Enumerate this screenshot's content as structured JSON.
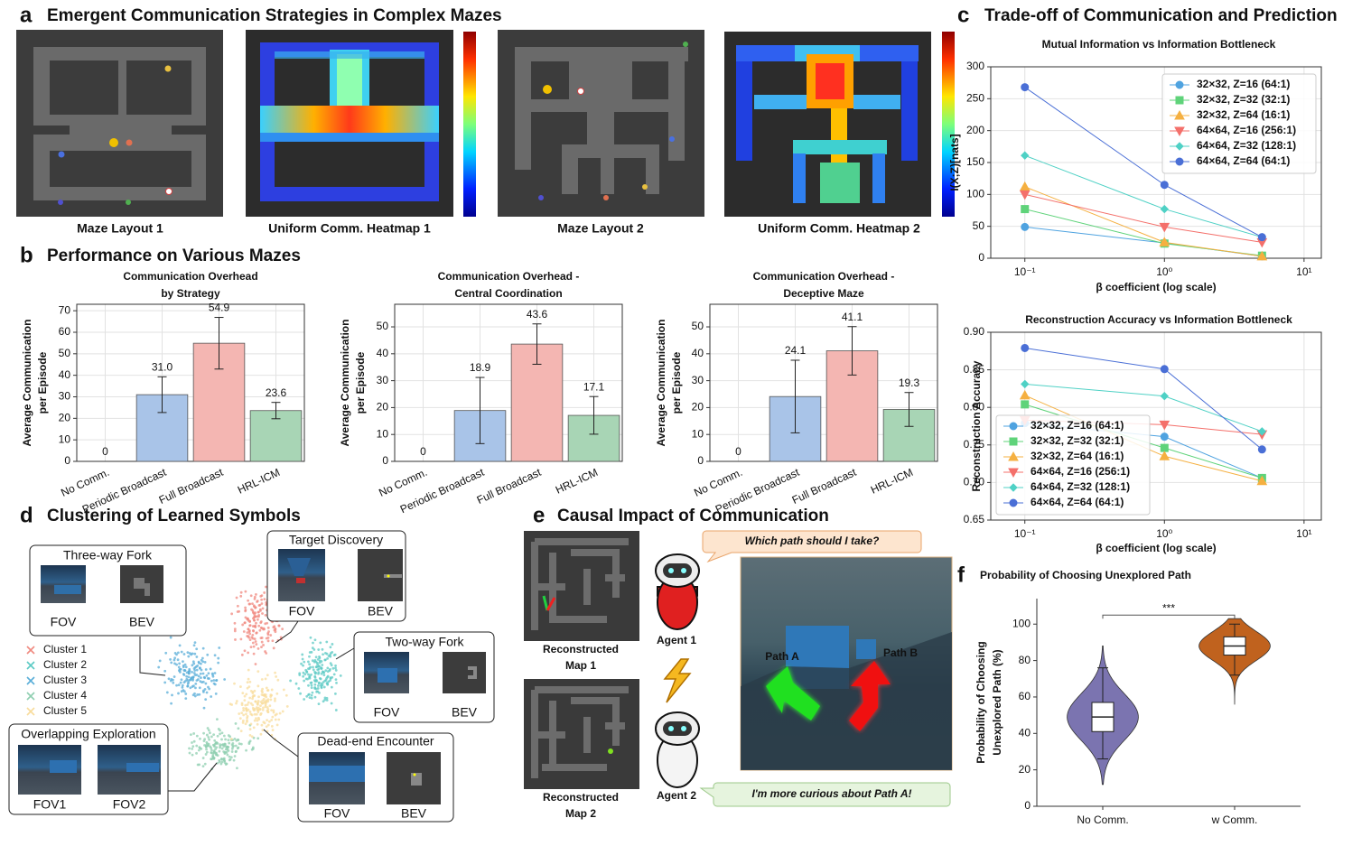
{
  "panels": {
    "a": {
      "letter": "a",
      "title": "Emergent Communication Strategies in Complex Mazes",
      "captions": [
        "Maze Layout 1",
        "Uniform Comm. Heatmap 1",
        "Maze Layout 2",
        "Uniform Comm. Heatmap 2"
      ]
    },
    "b": {
      "letter": "b",
      "title": "Performance on Various Mazes"
    },
    "c": {
      "letter": "c",
      "title": "Trade-off of Communication and Prediction"
    },
    "d": {
      "letter": "d",
      "title": "Clustering of Learned Symbols",
      "clusters": [
        {
          "name": "Cluster 1",
          "color": "#f08a80"
        },
        {
          "name": "Cluster 2",
          "color": "#5ccac4"
        },
        {
          "name": "Cluster 3",
          "color": "#5aaed8"
        },
        {
          "name": "Cluster 4",
          "color": "#8fcfb0"
        },
        {
          "name": "Cluster 5",
          "color": "#f8dc9c"
        }
      ],
      "examples": [
        {
          "title": "Three-way Fork",
          "views": [
            "FOV",
            "BEV"
          ]
        },
        {
          "title": "Target Discovery",
          "views": [
            "FOV",
            "BEV"
          ]
        },
        {
          "title": "Two-way Fork",
          "views": [
            "FOV",
            "BEV"
          ]
        },
        {
          "title": "Overlapping Exploration",
          "views": [
            "FOV1",
            "FOV2"
          ]
        },
        {
          "title": "Dead-end Encounter",
          "views": [
            "FOV",
            "BEV"
          ]
        }
      ]
    },
    "e": {
      "letter": "e",
      "title": "Causal Impact of Communication",
      "question": "Which path should I take?",
      "answer": "I'm more curious about Path A!",
      "agents": [
        "Agent 1",
        "Agent 2"
      ],
      "maps": [
        [
          "Reconstructed",
          "Map 1"
        ],
        [
          "Reconstructed",
          "Map 2"
        ]
      ],
      "paths": [
        "Path A",
        "Path B"
      ]
    },
    "f": {
      "letter": "f"
    }
  },
  "chart_data": [
    {
      "type": "bar",
      "title": [
        "Communication Overhead",
        "by Strategy"
      ],
      "ylabel": [
        "Average Communication",
        "per Episode"
      ],
      "categories": [
        "No Comm.",
        "Periodic Broadcast",
        "Full Broadcast",
        "HRL-ICM"
      ],
      "values": [
        0,
        31.0,
        54.9,
        23.6
      ],
      "value_labels": [
        "0",
        "31.0",
        "54.9",
        "23.6"
      ],
      "errors": [
        0,
        8.3,
        12,
        3.8
      ],
      "colors": [
        "#a9c4e8",
        "#a9c4e8",
        "#f4b6b2",
        "#a8d5b5"
      ],
      "ylim": [
        0,
        73
      ],
      "yticks": [
        0,
        10,
        20,
        30,
        40,
        50,
        60,
        70
      ],
      "grid": true
    },
    {
      "type": "bar",
      "title": [
        "Communication Overhead -",
        "Central Coordination"
      ],
      "ylabel": [
        "Average Communication",
        "per Episode"
      ],
      "categories": [
        "No Comm.",
        "Periodic Broadcast",
        "Full Broadcast",
        "HRL-ICM"
      ],
      "values": [
        0,
        18.9,
        43.6,
        17.1
      ],
      "value_labels": [
        "0",
        "18.9",
        "43.6",
        "17.1"
      ],
      "errors": [
        0,
        12.3,
        7.5,
        7
      ],
      "colors": [
        "#a9c4e8",
        "#a9c4e8",
        "#f4b6b2",
        "#a8d5b5"
      ],
      "ylim": [
        0,
        58.4
      ],
      "yticks": [
        0,
        10,
        20,
        30,
        40,
        50
      ],
      "grid": true
    },
    {
      "type": "bar",
      "title": [
        "Communication Overhead -",
        "Deceptive Maze"
      ],
      "ylabel": [
        "Average Communication",
        "per Episode"
      ],
      "categories": [
        "No Comm.",
        "Periodic Broadcast",
        "Full Broadcast",
        "HRL-ICM"
      ],
      "values": [
        0,
        24.1,
        41.1,
        19.3
      ],
      "value_labels": [
        "0",
        "24.1",
        "41.1",
        "19.3"
      ],
      "errors": [
        0,
        13.5,
        9,
        6.3
      ],
      "colors": [
        "#a9c4e8",
        "#a9c4e8",
        "#f4b6b2",
        "#a8d5b5"
      ],
      "ylim": [
        0,
        58.4
      ],
      "yticks": [
        0,
        10,
        20,
        30,
        40,
        50
      ],
      "grid": true
    },
    {
      "type": "line",
      "title": "Mutual Information vs Information Bottleneck",
      "xlabel": "β coefficient (log scale)",
      "ylabel": [
        "I(X;Z)[nats]"
      ],
      "x": [
        0.1,
        1,
        5
      ],
      "xscale": "log",
      "xlim": [
        0.057,
        13.3
      ],
      "xticks": [
        {
          "value": 0.1,
          "label": "10⁻¹"
        },
        {
          "value": 1,
          "label": "10⁰"
        },
        {
          "value": 10,
          "label": "10¹"
        }
      ],
      "ylim": [
        0,
        300
      ],
      "yticks": [
        0,
        50,
        100,
        150,
        200,
        250,
        300
      ],
      "grid": true,
      "legend": "upper right",
      "series": [
        {
          "name": "32×32, Z=16 (64:1)",
          "color": "#4fa3e0",
          "marker": "circle",
          "values": [
            49,
            24,
            3
          ]
        },
        {
          "name": "32×32, Z=32 (32:1)",
          "color": "#5fd37a",
          "marker": "square",
          "values": [
            77,
            23,
            4
          ]
        },
        {
          "name": "32×32, Z=64 (16:1)",
          "color": "#f5b041",
          "marker": "triangle-up",
          "values": [
            112,
            25,
            3
          ]
        },
        {
          "name": "64×64, Z=16 (256:1)",
          "color": "#f4706b",
          "marker": "triangle-down",
          "values": [
            100,
            49,
            25
          ]
        },
        {
          "name": "64×64, Z=32 (128:1)",
          "color": "#4fd1c5",
          "marker": "diamond",
          "values": [
            161,
            77,
            33
          ]
        },
        {
          "name": "64×64, Z=64 (64:1)",
          "color": "#4a6fd6",
          "marker": "circle",
          "values": [
            268,
            115,
            33
          ]
        }
      ]
    },
    {
      "type": "line",
      "title": "Reconstruction Accuracy vs Information Bottleneck",
      "xlabel": "β coefficient (log scale)",
      "ylabel": [
        "Reconstruction Accuracy"
      ],
      "x": [
        0.1,
        1,
        5
      ],
      "xscale": "log",
      "xlim": [
        0.057,
        13.3
      ],
      "xticks": [
        {
          "value": 0.1,
          "label": "10⁻¹"
        },
        {
          "value": 1,
          "label": "10⁰"
        },
        {
          "value": 10,
          "label": "10¹"
        }
      ],
      "ylim": [
        0.65,
        0.9
      ],
      "yticks": [
        0.65,
        {
          "value": 0.7,
          "label": "0.70"
        },
        0.75,
        {
          "value": 0.8,
          "label": "0.80"
        },
        0.85,
        {
          "value": 0.9,
          "label": "0.90"
        }
      ],
      "grid": true,
      "legend": "lower left",
      "series": [
        {
          "name": "32×32, Z=16 (64:1)",
          "color": "#4fa3e0",
          "marker": "circle",
          "values": [
            0.779,
            0.761,
            0.706
          ]
        },
        {
          "name": "32×32, Z=32 (32:1)",
          "color": "#5fd37a",
          "marker": "square",
          "values": [
            0.804,
            0.746,
            0.706
          ]
        },
        {
          "name": "32×32, Z=64 (16:1)",
          "color": "#f5b041",
          "marker": "triangle-up",
          "values": [
            0.816,
            0.735,
            0.702
          ]
        },
        {
          "name": "64×64, Z=16 (256:1)",
          "color": "#f4706b",
          "marker": "triangle-down",
          "values": [
            0.783,
            0.777,
            0.764
          ]
        },
        {
          "name": "64×64, Z=32 (128:1)",
          "color": "#4fd1c5",
          "marker": "diamond",
          "values": [
            0.831,
            0.815,
            0.768
          ]
        },
        {
          "name": "64×64, Z=64 (64:1)",
          "color": "#4a6fd6",
          "marker": "circle",
          "values": [
            0.879,
            0.851,
            0.744
          ]
        }
      ]
    },
    {
      "type": "violin",
      "title": "Probability of Choosing Unexplored Path",
      "ylabel": [
        "Probability of Choosing",
        "Unexplored Path (%)"
      ],
      "categories": [
        "No Comm.",
        "w Comm."
      ],
      "colors": [
        "#7b74b0",
        "#c0621e"
      ],
      "violins": [
        {
          "min": 12,
          "whisker_low": 26,
          "q1": 41,
          "median": 49,
          "q3": 57,
          "whisker_high": 76,
          "max": 88
        },
        {
          "min": 56,
          "whisker_low": 72,
          "q1": 83,
          "median": 88,
          "q3": 93,
          "whisker_high": 100,
          "max": 103
        }
      ],
      "significance": "***",
      "ylim": [
        0,
        114
      ],
      "yticks": [
        0,
        20,
        40,
        60,
        80,
        100
      ]
    }
  ]
}
